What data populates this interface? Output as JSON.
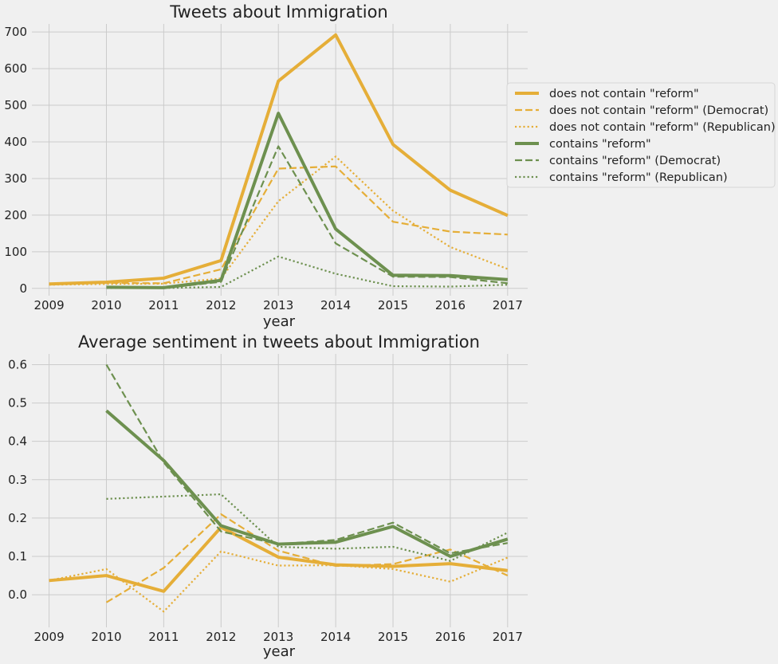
{
  "colors": {
    "orange": "#e5ae38",
    "green": "#6d904f",
    "background": "#f0f0f0",
    "grid": "#cbcbcb"
  },
  "legend": {
    "placement": "right",
    "entries": [
      {
        "label": "does not contain \"reform\"",
        "color": "#e5ae38",
        "style": "solid"
      },
      {
        "label": "does not contain \"reform\" (Democrat)",
        "color": "#e5ae38",
        "style": "dashed"
      },
      {
        "label": "does not contain \"reform\" (Republican)",
        "color": "#e5ae38",
        "style": "dotted"
      },
      {
        "label": "contains \"reform\"",
        "color": "#6d904f",
        "style": "solid"
      },
      {
        "label": "contains \"reform\" (Democrat)",
        "color": "#6d904f",
        "style": "dashed"
      },
      {
        "label": "contains \"reform\" (Republican)",
        "color": "#6d904f",
        "style": "dotted"
      }
    ]
  },
  "chart_data": [
    {
      "type": "line",
      "title": "Tweets about Immigration",
      "xlabel": "year",
      "ylabel": "",
      "xlim": [
        2008.7,
        2017.35
      ],
      "ylim": [
        -20,
        722
      ],
      "grid": true,
      "x_ticks": [
        2009,
        2010,
        2011,
        2012,
        2013,
        2014,
        2015,
        2016,
        2017
      ],
      "y_ticks": [
        0,
        100,
        200,
        300,
        400,
        500,
        600,
        700
      ],
      "series": [
        {
          "name": "does not contain \"reform\"",
          "color": "#e5ae38",
          "style": "solid",
          "x": [
            2009,
            2010,
            2011,
            2012,
            2013,
            2014,
            2015,
            2016,
            2017
          ],
          "y": [
            12,
            17,
            28,
            76,
            566,
            692,
            393,
            268,
            199
          ]
        },
        {
          "name": "does not contain \"reform\" (Democrat)",
          "color": "#e5ae38",
          "style": "dashed",
          "x": [
            2009,
            2010,
            2011,
            2012,
            2013,
            2014,
            2015,
            2016,
            2017
          ],
          "y": [
            11,
            15,
            14,
            52,
            327,
            333,
            182,
            155,
            147
          ]
        },
        {
          "name": "does not contain \"reform\" (Republican)",
          "color": "#e5ae38",
          "style": "dotted",
          "x": [
            2009,
            2010,
            2011,
            2012,
            2013,
            2014,
            2015,
            2016,
            2017
          ],
          "y": [
            10,
            12,
            13,
            27,
            238,
            360,
            212,
            113,
            53
          ]
        },
        {
          "name": "contains \"reform\"",
          "color": "#6d904f",
          "style": "solid",
          "x": [
            2010,
            2011,
            2012,
            2013,
            2014,
            2015,
            2016,
            2017
          ],
          "y": [
            3,
            2,
            22,
            478,
            162,
            36,
            35,
            24
          ]
        },
        {
          "name": "contains \"reform\" (Democrat)",
          "color": "#6d904f",
          "style": "dashed",
          "x": [
            2010,
            2011,
            2012,
            2013,
            2014,
            2015,
            2016,
            2017
          ],
          "y": [
            2,
            1,
            18,
            388,
            123,
            32,
            31,
            14
          ]
        },
        {
          "name": "contains \"reform\" (Republican)",
          "color": "#6d904f",
          "style": "dotted",
          "x": [
            2010,
            2011,
            2012,
            2013,
            2014,
            2015,
            2016,
            2017
          ],
          "y": [
            1,
            1,
            4,
            87,
            40,
            6,
            5,
            10
          ]
        }
      ]
    },
    {
      "type": "line",
      "title": "Average sentiment in tweets about Immigration",
      "xlabel": "year",
      "ylabel": "",
      "xlim": [
        2008.7,
        2017.35
      ],
      "ylim": [
        -0.085,
        0.628
      ],
      "grid": true,
      "x_ticks": [
        2009,
        2010,
        2011,
        2012,
        2013,
        2014,
        2015,
        2016,
        2017
      ],
      "y_ticks": [
        0.0,
        0.1,
        0.2,
        0.3,
        0.4,
        0.5,
        0.6
      ],
      "y_tick_labels": [
        "0.0",
        "0.1",
        "0.2",
        "0.3",
        "0.4",
        "0.5",
        "0.6"
      ],
      "series": [
        {
          "name": "does not contain \"reform\"",
          "color": "#e5ae38",
          "style": "solid",
          "x": [
            2009,
            2010,
            2011,
            2012,
            2013,
            2014,
            2015,
            2016,
            2017
          ],
          "y": [
            0.037,
            0.05,
            0.009,
            0.176,
            0.098,
            0.078,
            0.074,
            0.081,
            0.063
          ]
        },
        {
          "name": "does not contain \"reform\" (Democrat)",
          "color": "#e5ae38",
          "style": "dashed",
          "x": [
            2010,
            2011,
            2012,
            2013,
            2014,
            2015,
            2016,
            2017
          ],
          "y": [
            -0.02,
            0.07,
            0.21,
            0.115,
            0.075,
            0.08,
            0.118,
            0.05
          ]
        },
        {
          "name": "does not contain \"reform\" (Republican)",
          "color": "#e5ae38",
          "style": "dotted",
          "x": [
            2009,
            2010,
            2011,
            2012,
            2013,
            2014,
            2015,
            2016,
            2017
          ],
          "y": [
            0.037,
            0.067,
            -0.044,
            0.113,
            0.076,
            0.077,
            0.067,
            0.034,
            0.097
          ]
        },
        {
          "name": "contains \"reform\"",
          "color": "#6d904f",
          "style": "solid",
          "x": [
            2010,
            2011,
            2012,
            2013,
            2014,
            2015,
            2016,
            2017
          ],
          "y": [
            0.48,
            0.35,
            0.18,
            0.132,
            0.137,
            0.178,
            0.1,
            0.145
          ]
        },
        {
          "name": "contains \"reform\" (Democrat)",
          "color": "#6d904f",
          "style": "dashed",
          "x": [
            2010,
            2011,
            2012,
            2013,
            2014,
            2015,
            2016,
            2017
          ],
          "y": [
            0.6,
            0.345,
            0.165,
            0.132,
            0.143,
            0.188,
            0.108,
            0.135
          ]
        },
        {
          "name": "contains \"reform\" (Republican)",
          "color": "#6d904f",
          "style": "dotted",
          "x": [
            2010,
            2011,
            2012,
            2013,
            2014,
            2015,
            2016,
            2017
          ],
          "y": [
            0.25,
            0.256,
            0.262,
            0.125,
            0.12,
            0.125,
            0.088,
            0.162
          ]
        }
      ]
    }
  ]
}
